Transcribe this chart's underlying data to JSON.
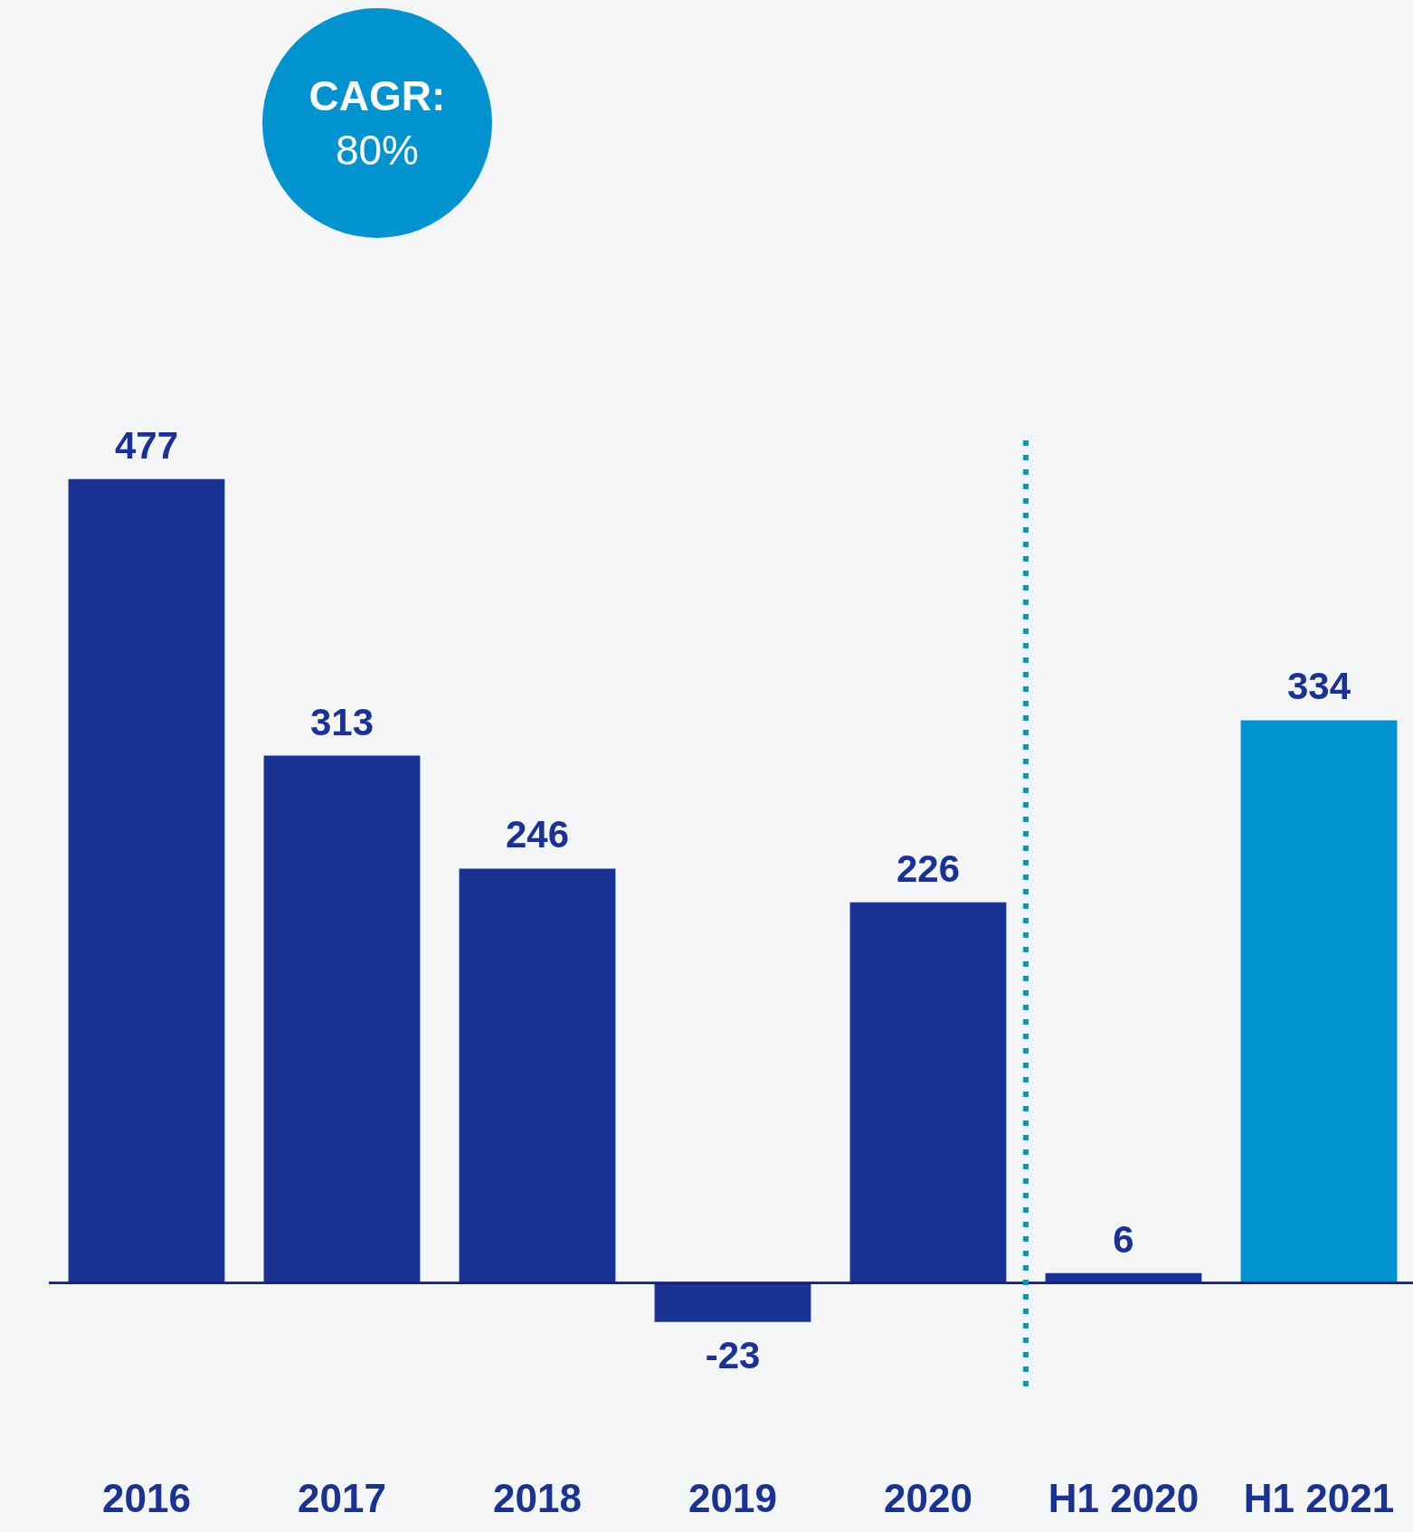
{
  "chart_data": {
    "type": "bar",
    "categories": [
      "2016",
      "2017",
      "2018",
      "2019",
      "2020",
      "H1 2020",
      "H1 2021"
    ],
    "values": [
      477,
      313,
      246,
      -23,
      226,
      6,
      334
    ],
    "colors": [
      "#1a3293",
      "#1a3293",
      "#1a3293",
      "#1a3293",
      "#1a3293",
      "#1a3293",
      "#0093d0"
    ],
    "data_labels": true,
    "ylim": [
      -65,
      500
    ],
    "ref_lines": [
      {
        "axis": "y",
        "value": 0,
        "color": "#1a237e",
        "line_style": "solid"
      },
      {
        "axis": "x",
        "value": "H1 2020",
        "color": "#0093d0",
        "line_style": "dotted"
      }
    ],
    "annotations": [
      "CAGR:",
      "80%"
    ]
  }
}
